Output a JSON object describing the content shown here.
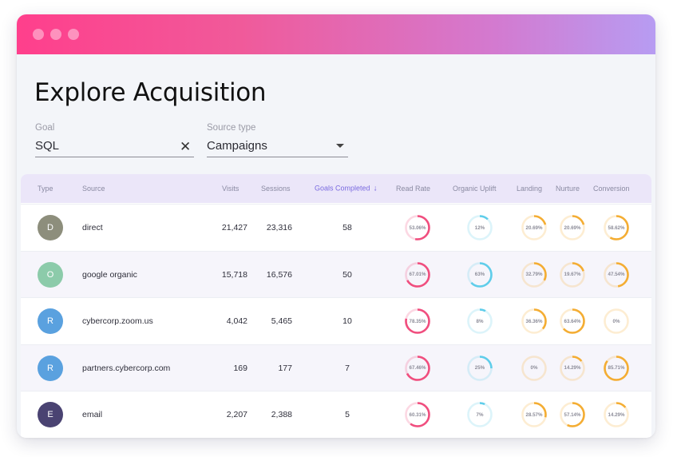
{
  "window": {
    "dots": [
      "window-dot",
      "window-dot",
      "window-dot"
    ]
  },
  "page": {
    "title": "Explore Acquisition"
  },
  "filters": {
    "goal": {
      "label": "Goal",
      "value": "SQL",
      "clear_icon": "close-icon",
      "clear_glyph": "✕"
    },
    "source_type": {
      "label": "Source type",
      "value": "Campaigns",
      "dropdown_icon": "caret-down-icon"
    }
  },
  "colors": {
    "read_rate": "#f04e7e",
    "organic_uplift": "#5fcdea",
    "landing": "#f4ad33",
    "nurture": "#f4ad33",
    "conversion": "#f4ad33"
  },
  "table": {
    "columns": {
      "type": "Type",
      "source": "Source",
      "visits": "Visits",
      "sessions": "Sessions",
      "goals_completed": "Goals Completed",
      "read_rate": "Read Rate",
      "organic_uplift": "Organic Uplift",
      "landing": "Landing",
      "nurture": "Nurture",
      "conversion": "Conversion"
    },
    "sort": {
      "column": "goals_completed",
      "direction": "descending",
      "icon": "arrow-down-icon",
      "glyph": "↓"
    },
    "rows": [
      {
        "initial": "D",
        "avatar_color": "#8d8e7c",
        "source": "direct",
        "visits": "21,427",
        "sessions": "23,316",
        "goals": "58",
        "read_rate": {
          "label": "53.06%",
          "value": 0.5306
        },
        "organic_uplift": {
          "label": "12%",
          "value": 0.12
        },
        "landing": {
          "label": "20.69%",
          "value": 0.2069
        },
        "nurture": {
          "label": "20.69%",
          "value": 0.2069
        },
        "conversion": {
          "label": "58.62%",
          "value": 0.5862
        }
      },
      {
        "initial": "O",
        "avatar_color": "#8ccbaa",
        "source": "google organic",
        "visits": "15,718",
        "sessions": "16,576",
        "goals": "50",
        "read_rate": {
          "label": "67.01%",
          "value": 0.6701
        },
        "organic_uplift": {
          "label": "63%",
          "value": 0.63
        },
        "landing": {
          "label": "32.79%",
          "value": 0.3279
        },
        "nurture": {
          "label": "19.67%",
          "value": 0.1967
        },
        "conversion": {
          "label": "47.54%",
          "value": 0.4754
        }
      },
      {
        "initial": "R",
        "avatar_color": "#5aa1df",
        "source": "cybercorp.zoom.us",
        "visits": "4,042",
        "sessions": "5,465",
        "goals": "10",
        "read_rate": {
          "label": "78.35%",
          "value": 0.7835
        },
        "organic_uplift": {
          "label": "8%",
          "value": 0.08
        },
        "landing": {
          "label": "36.36%",
          "value": 0.3636
        },
        "nurture": {
          "label": "63.64%",
          "value": 0.6364
        },
        "conversion": {
          "label": "0%",
          "value": 0.0
        }
      },
      {
        "initial": "R",
        "avatar_color": "#5aa1df",
        "source": "partners.cybercorp.com",
        "visits": "169",
        "sessions": "177",
        "goals": "7",
        "read_rate": {
          "label": "67.46%",
          "value": 0.6746
        },
        "organic_uplift": {
          "label": "25%",
          "value": 0.25
        },
        "landing": {
          "label": "0%",
          "value": 0.0
        },
        "nurture": {
          "label": "14.29%",
          "value": 0.1429
        },
        "conversion": {
          "label": "85.71%",
          "value": 0.8571
        }
      },
      {
        "initial": "E",
        "avatar_color": "#4a4372",
        "source": "email",
        "visits": "2,207",
        "sessions": "2,388",
        "goals": "5",
        "read_rate": {
          "label": "60.31%",
          "value": 0.6031
        },
        "organic_uplift": {
          "label": "7%",
          "value": 0.07
        },
        "landing": {
          "label": "28.57%",
          "value": 0.2857
        },
        "nurture": {
          "label": "57.14%",
          "value": 0.5714
        },
        "conversion": {
          "label": "14.29%",
          "value": 0.1429
        }
      }
    ]
  }
}
